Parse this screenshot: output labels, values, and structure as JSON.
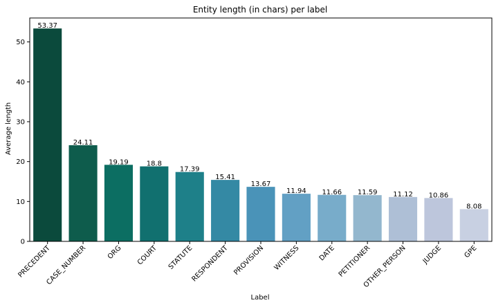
{
  "chart_data": {
    "type": "bar",
    "title": "Entity length (in chars) per label",
    "xlabel": "Label",
    "ylabel": "Average length",
    "ylim": [
      0,
      56
    ],
    "yticks": [
      0,
      10,
      20,
      30,
      40,
      50
    ],
    "categories": [
      "PRECEDENT",
      "CASE_NUMBER",
      "ORG",
      "COURT",
      "STATUTE",
      "RESPONDENT",
      "PROVISION",
      "WITNESS",
      "DATE",
      "PETITIONER",
      "OTHER_PERSON",
      "JUDGE",
      "GPE"
    ],
    "values": [
      53.37,
      24.11,
      19.19,
      18.8,
      17.39,
      15.41,
      13.67,
      11.94,
      11.66,
      11.59,
      11.12,
      10.86,
      8.08
    ],
    "value_labels": [
      "53.37",
      "24.11",
      "19.19",
      "18.8",
      "17.39",
      "15.41",
      "13.67",
      "11.94",
      "11.66",
      "11.59",
      "11.12",
      "10.86",
      "8.08"
    ],
    "colors": [
      "#0b4a3c",
      "#0e5c4c",
      "#0c6e62",
      "#11706f",
      "#1e8089",
      "#3489a4",
      "#4a93b8",
      "#62a0c4",
      "#78acca",
      "#93b7ce",
      "#aebfd6",
      "#bdc6dc",
      "#c8d0e2"
    ],
    "grid": false,
    "legend": "none"
  }
}
